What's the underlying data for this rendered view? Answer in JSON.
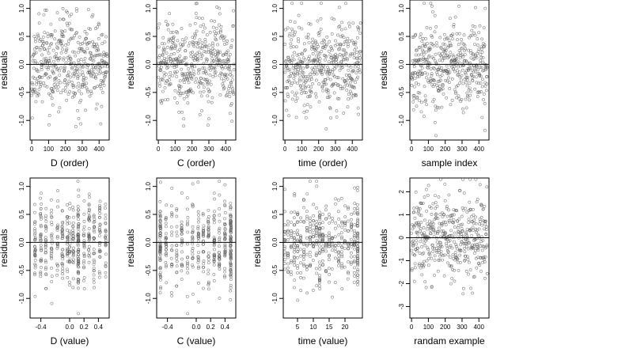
{
  "figure": {
    "description_free": true
  },
  "chart_data": [
    {
      "type": "scatter",
      "xlabel": "D (order)",
      "ylabel": "residuals",
      "xlim": [
        -10,
        460
      ],
      "ylim": [
        -1.35,
        1.15
      ],
      "xticks": [
        0,
        100,
        200,
        300,
        400
      ],
      "xtick_labels": [
        "0",
        "100",
        "200",
        "300",
        "400"
      ],
      "yticks": [
        1.0,
        0.5,
        0.0,
        -0.5,
        -1.0
      ],
      "ytick_labels": [
        "1.0",
        "0.5",
        "0.0",
        "-0.5",
        "-1.0"
      ],
      "hline": 0,
      "n_points": 450,
      "seed": 11,
      "pattern": "index"
    },
    {
      "type": "scatter",
      "xlabel": "C (order)",
      "ylabel": "residuals",
      "xlim": [
        -10,
        460
      ],
      "ylim": [
        -1.35,
        1.15
      ],
      "xticks": [
        0,
        100,
        200,
        300,
        400
      ],
      "xtick_labels": [
        "0",
        "100",
        "200",
        "300",
        "400"
      ],
      "yticks": [
        1.0,
        0.5,
        0.0,
        -0.5,
        -1.0
      ],
      "ytick_labels": [
        "1.0",
        "0.5",
        "0.0",
        "-0.5",
        "-1.0"
      ],
      "hline": 0,
      "n_points": 450,
      "seed": 23,
      "pattern": "index"
    },
    {
      "type": "scatter",
      "xlabel": "time (order)",
      "ylabel": "residuals",
      "xlim": [
        -10,
        460
      ],
      "ylim": [
        -1.35,
        1.15
      ],
      "xticks": [
        0,
        100,
        200,
        300,
        400
      ],
      "xtick_labels": [
        "0",
        "100",
        "200",
        "300",
        "400"
      ],
      "yticks": [
        1.0,
        0.5,
        0.0,
        -0.5,
        -1.0
      ],
      "ytick_labels": [
        "1.0",
        "0.5",
        "0.0",
        "-0.5",
        "-1.0"
      ],
      "hline": 0,
      "n_points": 450,
      "seed": 37,
      "pattern": "index"
    },
    {
      "type": "scatter",
      "xlabel": "sample index",
      "ylabel": "residuals",
      "xlim": [
        -10,
        460
      ],
      "ylim": [
        -1.35,
        1.15
      ],
      "xticks": [
        0,
        100,
        200,
        300,
        400
      ],
      "xtick_labels": [
        "0",
        "100",
        "200",
        "300",
        "400"
      ],
      "yticks": [
        1.0,
        0.5,
        0.0,
        -0.5,
        -1.0
      ],
      "ytick_labels": [
        "1.0",
        "0.5",
        "0.0",
        "-0.5",
        "-1.0"
      ],
      "hline": 0,
      "n_points": 450,
      "seed": 41,
      "pattern": "index"
    },
    {
      "type": "scatter",
      "xlabel": "D (value)",
      "ylabel": "residuals",
      "xlim": [
        -0.55,
        0.55
      ],
      "ylim": [
        -1.35,
        1.15
      ],
      "xticks": [
        -0.4,
        0.0,
        0.2,
        0.4
      ],
      "xtick_labels": [
        "-0.4",
        "0.0",
        "0.2",
        "0.4"
      ],
      "yticks": [
        1.0,
        0.5,
        0.0,
        -0.5,
        -1.0
      ],
      "ytick_labels": [
        "1.0",
        "0.5",
        "0.0",
        "-0.5",
        "-1.0"
      ],
      "hline": 0,
      "n_points": 450,
      "seed": 53,
      "pattern": "value_d"
    },
    {
      "type": "scatter",
      "xlabel": "C (value)",
      "ylabel": "residuals",
      "xlim": [
        -0.55,
        0.55
      ],
      "ylim": [
        -1.35,
        1.15
      ],
      "xticks": [
        -0.4,
        0.0,
        0.2,
        0.4
      ],
      "xtick_labels": [
        "-0.4",
        "0.0",
        "0.2",
        "0.4"
      ],
      "yticks": [
        1.0,
        0.5,
        0.0,
        -0.5,
        -1.0
      ],
      "ytick_labels": [
        "1.0",
        "0.5",
        "0.0",
        "-0.5",
        "-1.0"
      ],
      "hline": 0,
      "n_points": 450,
      "seed": 67,
      "pattern": "value_c"
    },
    {
      "type": "scatter",
      "xlabel": "time (value)",
      "ylabel": "residuals",
      "xlim": [
        0.5,
        25.5
      ],
      "ylim": [
        -1.35,
        1.15
      ],
      "xticks": [
        5,
        10,
        15,
        20
      ],
      "xtick_labels": [
        "5",
        "10",
        "15",
        "20"
      ],
      "yticks": [
        1.0,
        0.5,
        0.0,
        -0.5,
        -1.0
      ],
      "ytick_labels": [
        "1.0",
        "0.5",
        "0.0",
        "-0.5",
        "-1.0"
      ],
      "hline": 0,
      "n_points": 450,
      "seed": 79,
      "pattern": "value_time"
    },
    {
      "type": "scatter",
      "xlabel": "randam example",
      "ylabel": "residuals",
      "xlim": [
        -10,
        460
      ],
      "ylim": [
        -3.5,
        2.6
      ],
      "xticks": [
        0,
        100,
        200,
        300,
        400
      ],
      "xtick_labels": [
        "0",
        "100",
        "200",
        "300",
        "400"
      ],
      "yticks": [
        2,
        1,
        0,
        -1,
        -2,
        -3
      ],
      "ytick_labels": [
        "2",
        "1",
        "0",
        "-1",
        "-2",
        "-3"
      ],
      "hline": 0,
      "n_points": 450,
      "seed": 97,
      "pattern": "random"
    }
  ]
}
